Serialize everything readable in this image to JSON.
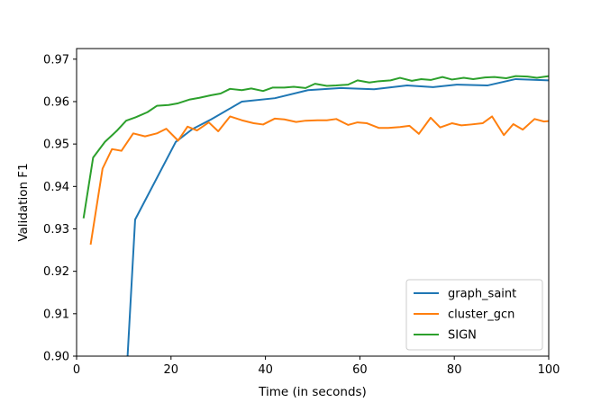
{
  "chart_data": {
    "type": "line",
    "title": "",
    "xlabel": "Time (in seconds)",
    "ylabel": "Validation F1",
    "xlim": [
      0,
      100
    ],
    "ylim": [
      0.9,
      0.9725
    ],
    "xticks": [
      0,
      20,
      40,
      60,
      80,
      100
    ],
    "yticks": [
      0.9,
      0.91,
      0.92,
      0.93,
      0.94,
      0.95,
      0.96,
      0.97
    ],
    "tick_labels_x": [
      "0",
      "20",
      "40",
      "60",
      "80",
      "100"
    ],
    "tick_labels_y": [
      "0.90",
      "0.91",
      "0.92",
      "0.93",
      "0.94",
      "0.95",
      "0.96",
      "0.97"
    ],
    "grid": false,
    "legend_position": "lower-right",
    "series": [
      {
        "name": "graph_saint",
        "color": "#1f77b4",
        "x": [
          10.8,
          12.4,
          21.0,
          24.5,
          28.5,
          35.0,
          42.0,
          49.0,
          56.0,
          63.0,
          70.0,
          75.5,
          80.5,
          87.0,
          93.0,
          100.0
        ],
        "y": [
          0.9,
          0.9322,
          0.9505,
          0.9535,
          0.9558,
          0.96,
          0.9608,
          0.9627,
          0.9632,
          0.9629,
          0.9638,
          0.9634,
          0.964,
          0.9638,
          0.9653,
          0.965
        ]
      },
      {
        "name": "cluster_gcn",
        "color": "#ff7f0e",
        "x": [
          3.0,
          5.5,
          7.5,
          9.5,
          12.0,
          14.5,
          17.0,
          19.0,
          21.5,
          23.5,
          25.5,
          28.0,
          30.0,
          32.5,
          35.0,
          37.5,
          39.5,
          42.0,
          44.0,
          46.5,
          48.5,
          51.0,
          53.0,
          55.0,
          57.5,
          59.5,
          61.5,
          64.0,
          66.0,
          68.5,
          70.5,
          72.5,
          75.0,
          77.0,
          79.5,
          81.5,
          83.5,
          86.0,
          88.0,
          90.5,
          92.5,
          94.5,
          97.0,
          99.0,
          100.0
        ],
        "y": [
          0.9265,
          0.9442,
          0.9488,
          0.9484,
          0.9525,
          0.9518,
          0.9525,
          0.9536,
          0.9508,
          0.9541,
          0.9532,
          0.9551,
          0.953,
          0.9565,
          0.9556,
          0.9549,
          0.9546,
          0.956,
          0.9558,
          0.9552,
          0.9555,
          0.9556,
          0.9556,
          0.9559,
          0.9545,
          0.9551,
          0.9549,
          0.9538,
          0.9538,
          0.954,
          0.9543,
          0.9524,
          0.9562,
          0.9539,
          0.9549,
          0.9544,
          0.9546,
          0.9549,
          0.9565,
          0.9521,
          0.9547,
          0.9534,
          0.9559,
          0.9553,
          0.9554
        ]
      },
      {
        "name": "SIGN",
        "color": "#2ca02c",
        "x": [
          1.5,
          3.5,
          6.0,
          8.5,
          10.5,
          12.5,
          15.0,
          17.0,
          19.5,
          21.5,
          24.0,
          26.0,
          28.5,
          30.5,
          32.5,
          35.0,
          37.0,
          39.5,
          41.5,
          44.0,
          46.0,
          48.5,
          50.5,
          53.0,
          55.0,
          57.5,
          59.5,
          62.0,
          64.0,
          66.5,
          68.5,
          71.0,
          73.0,
          75.0,
          77.5,
          79.5,
          82.0,
          84.0,
          86.5,
          88.5,
          91.0,
          93.0,
          95.5,
          97.5,
          100.0
        ],
        "y": [
          0.9327,
          0.9468,
          0.9505,
          0.9531,
          0.9555,
          0.9563,
          0.9575,
          0.959,
          0.9592,
          0.9596,
          0.9605,
          0.9609,
          0.9615,
          0.9619,
          0.963,
          0.9627,
          0.9631,
          0.9625,
          0.9633,
          0.9633,
          0.9635,
          0.9632,
          0.9642,
          0.9637,
          0.9638,
          0.964,
          0.965,
          0.9645,
          0.9648,
          0.965,
          0.9656,
          0.9649,
          0.9653,
          0.9651,
          0.9658,
          0.9652,
          0.9656,
          0.9653,
          0.9657,
          0.9658,
          0.9655,
          0.966,
          0.9659,
          0.9656,
          0.966
        ]
      }
    ]
  }
}
